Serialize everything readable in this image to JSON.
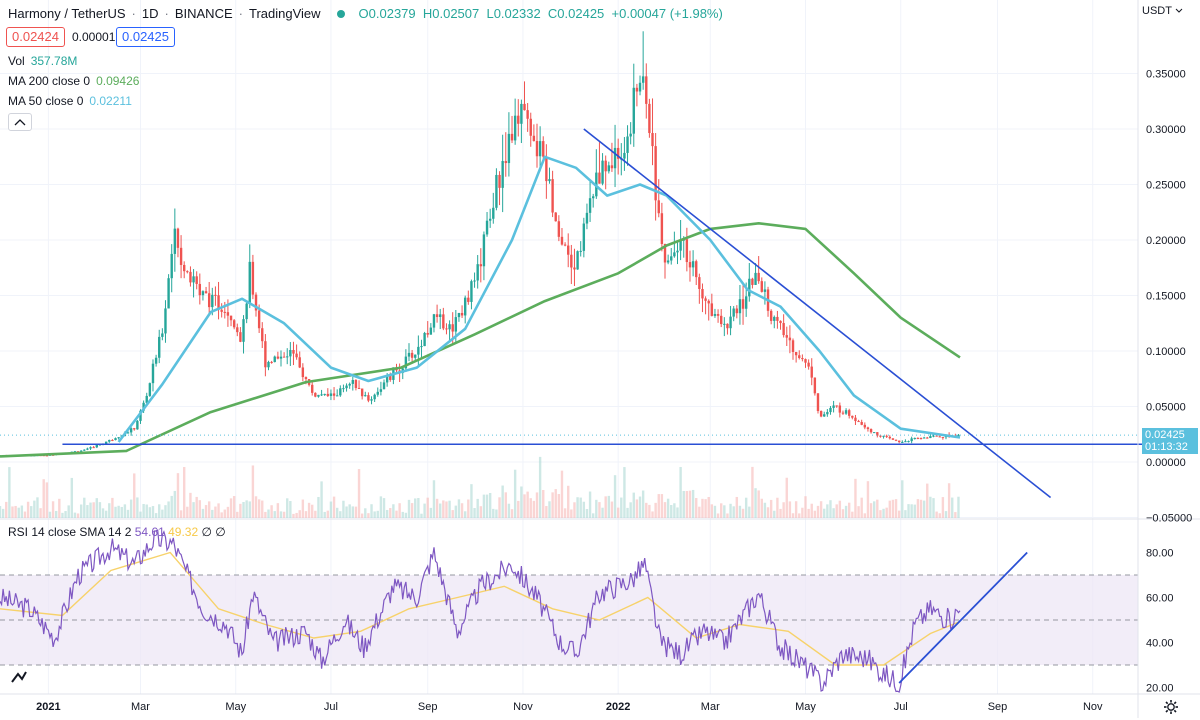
{
  "header": {
    "symbol": "Harmony / TetherUS",
    "interval": "1D",
    "exchange": "BINANCE",
    "platform": "TradingView",
    "ohlc": "O0.02379  H0.02507  L0.02332  C0.02425  +0.00047 (+1.98%)",
    "bid": "0.02424",
    "spread": "0.00001",
    "ask": "0.02425"
  },
  "indicators": {
    "vol_label": "Vol",
    "vol_value": "357.78M",
    "ma200_label": "MA 200 close 0",
    "ma200_value": "0.09426",
    "ma50_label": "MA 50 close 0",
    "ma50_value": "0.02211",
    "collapse_icon": "chevron-up-icon"
  },
  "rsi": {
    "label": "RSI 14 close SMA 14 2",
    "value": "54.61",
    "sma_value": "49.32",
    "extra": "∅ ∅"
  },
  "axis": {
    "currency": "USDT",
    "currency_icon": "chevron-down-icon",
    "last_price": "0.02425",
    "countdown": "01:13:32",
    "settings_icon": "gear-icon",
    "logo_icon": "tradingview-logo-icon"
  },
  "colors": {
    "up": "#26a69a",
    "down": "#ef5350",
    "ma200": "#5cad5c",
    "ma50": "#5bc0de",
    "trendline": "#2a4fd4",
    "rsi": "#7e57c2",
    "rsi_sma": "#f7d26a",
    "rsi_band": "#ede7f6"
  },
  "chart_data": [
    {
      "type": "candlestick",
      "title": "Harmony / TetherUS",
      "ylim": [
        -0.05,
        0.4
      ],
      "yticks": [
        "0.35000",
        "0.30000",
        "0.25000",
        "0.20000",
        "0.15000",
        "0.10000",
        "0.05000",
        "0.00000",
        "−0.05000"
      ],
      "ytick_values": [
        0.35,
        0.3,
        0.25,
        0.2,
        0.15,
        0.1,
        0.05,
        0.0,
        -0.05
      ],
      "xticks": [
        "2021",
        "Mar",
        "May",
        "Jul",
        "Sep",
        "Nov",
        "2022",
        "Mar",
        "May",
        "Jul",
        "Sep",
        "Nov"
      ],
      "x_start": "2020-12-01",
      "x_end": "2022-11-30",
      "price_path": [
        [
          "2020-12-01",
          0.006
        ],
        [
          "2021-01-01",
          0.006
        ],
        [
          "2021-01-25",
          0.011
        ],
        [
          "2021-02-10",
          0.02
        ],
        [
          "2021-02-25",
          0.03
        ],
        [
          "2021-03-05",
          0.06
        ],
        [
          "2021-03-15",
          0.12
        ],
        [
          "2021-03-22",
          0.2
        ],
        [
          "2021-04-01",
          0.17
        ],
        [
          "2021-04-10",
          0.15
        ],
        [
          "2021-04-25",
          0.14
        ],
        [
          "2021-05-05",
          0.11
        ],
        [
          "2021-05-10",
          0.17
        ],
        [
          "2021-05-20",
          0.09
        ],
        [
          "2021-06-05",
          0.1
        ],
        [
          "2021-06-20",
          0.06
        ],
        [
          "2021-07-01",
          0.06
        ],
        [
          "2021-07-15",
          0.07
        ],
        [
          "2021-07-25",
          0.055
        ],
        [
          "2021-08-10",
          0.08
        ],
        [
          "2021-08-25",
          0.1
        ],
        [
          "2021-09-05",
          0.13
        ],
        [
          "2021-09-15",
          0.12
        ],
        [
          "2021-10-01",
          0.16
        ],
        [
          "2021-10-12",
          0.23
        ],
        [
          "2021-10-25",
          0.3
        ],
        [
          "2021-10-30",
          0.33
        ],
        [
          "2021-11-05",
          0.29
        ],
        [
          "2021-11-15",
          0.27
        ],
        [
          "2021-11-25",
          0.2
        ],
        [
          "2021-12-05",
          0.18
        ],
        [
          "2021-12-15",
          0.24
        ],
        [
          "2021-12-25",
          0.27
        ],
        [
          "2022-01-05",
          0.28
        ],
        [
          "2022-01-12",
          0.33
        ],
        [
          "2022-01-17",
          0.35
        ],
        [
          "2022-01-22",
          0.29
        ],
        [
          "2022-01-30",
          0.18
        ],
        [
          "2022-02-10",
          0.2
        ],
        [
          "2022-02-20",
          0.17
        ],
        [
          "2022-03-01",
          0.14
        ],
        [
          "2022-03-10",
          0.12
        ],
        [
          "2022-03-20",
          0.14
        ],
        [
          "2022-03-30",
          0.17
        ],
        [
          "2022-04-10",
          0.13
        ],
        [
          "2022-04-25",
          0.1
        ],
        [
          "2022-05-05",
          0.08
        ],
        [
          "2022-05-10",
          0.04
        ],
        [
          "2022-05-20",
          0.05
        ],
        [
          "2022-06-01",
          0.04
        ],
        [
          "2022-06-15",
          0.025
        ],
        [
          "2022-06-30",
          0.018
        ],
        [
          "2022-07-15",
          0.022
        ],
        [
          "2022-08-01",
          0.024
        ],
        [
          "2022-08-08",
          0.02425
        ]
      ],
      "ma200_path": [
        [
          "2020-12-01",
          0.005
        ],
        [
          "2021-02-20",
          0.01
        ],
        [
          "2021-04-15",
          0.045
        ],
        [
          "2021-06-15",
          0.072
        ],
        [
          "2021-08-15",
          0.085
        ],
        [
          "2021-10-01",
          0.115
        ],
        [
          "2021-11-15",
          0.145
        ],
        [
          "2022-01-01",
          0.17
        ],
        [
          "2022-02-01",
          0.195
        ],
        [
          "2022-03-01",
          0.21
        ],
        [
          "2022-04-01",
          0.215
        ],
        [
          "2022-05-01",
          0.21
        ],
        [
          "2022-06-01",
          0.17
        ],
        [
          "2022-07-01",
          0.13
        ],
        [
          "2022-08-08",
          0.09426
        ]
      ],
      "ma50_path": [
        [
          "2021-02-15",
          0.018
        ],
        [
          "2021-03-15",
          0.07
        ],
        [
          "2021-04-15",
          0.135
        ],
        [
          "2021-05-05",
          0.147
        ],
        [
          "2021-06-01",
          0.125
        ],
        [
          "2021-07-01",
          0.085
        ],
        [
          "2021-07-25",
          0.073
        ],
        [
          "2021-08-25",
          0.085
        ],
        [
          "2021-09-25",
          0.12
        ],
        [
          "2021-10-25",
          0.2
        ],
        [
          "2021-11-15",
          0.275
        ],
        [
          "2021-12-05",
          0.265
        ],
        [
          "2021-12-25",
          0.24
        ],
        [
          "2022-01-15",
          0.25
        ],
        [
          "2022-02-01",
          0.24
        ],
        [
          "2022-03-01",
          0.2
        ],
        [
          "2022-03-25",
          0.155
        ],
        [
          "2022-04-15",
          0.14
        ],
        [
          "2022-05-10",
          0.1
        ],
        [
          "2022-06-01",
          0.06
        ],
        [
          "2022-07-01",
          0.03
        ],
        [
          "2022-08-08",
          0.02211
        ]
      ],
      "trendline_down": [
        [
          "2021-12-10",
          0.3
        ],
        [
          "2022-10-05",
          -0.032
        ]
      ],
      "trendline_flat": [
        [
          "2021-01-10",
          0.016
        ],
        [
          "2022-11-30",
          0.016
        ]
      ]
    },
    {
      "type": "line",
      "title": "RSI 14 close SMA 14 2",
      "ylim": [
        15,
        90
      ],
      "yticks": [
        "80.00",
        "60.00",
        "40.00",
        "20.00"
      ],
      "ytick_values": [
        80,
        60,
        40,
        20
      ],
      "band": [
        30,
        70
      ],
      "midline": 50,
      "rsi_path": [
        [
          "2020-12-01",
          60
        ],
        [
          "2020-12-20",
          55
        ],
        [
          "2021-01-05",
          42
        ],
        [
          "2021-01-20",
          70
        ],
        [
          "2021-02-10",
          82
        ],
        [
          "2021-02-25",
          75
        ],
        [
          "2021-03-10",
          86
        ],
        [
          "2021-03-22",
          84
        ],
        [
          "2021-04-10",
          55
        ],
        [
          "2021-04-25",
          48
        ],
        [
          "2021-05-05",
          35
        ],
        [
          "2021-05-12",
          62
        ],
        [
          "2021-05-25",
          40
        ],
        [
          "2021-06-15",
          45
        ],
        [
          "2021-06-25",
          32
        ],
        [
          "2021-07-10",
          50
        ],
        [
          "2021-07-22",
          38
        ],
        [
          "2021-08-10",
          65
        ],
        [
          "2021-08-25",
          60
        ],
        [
          "2021-09-05",
          80
        ],
        [
          "2021-09-20",
          45
        ],
        [
          "2021-10-05",
          65
        ],
        [
          "2021-10-25",
          75
        ],
        [
          "2021-11-10",
          60
        ],
        [
          "2021-11-25",
          40
        ],
        [
          "2021-12-05",
          35
        ],
        [
          "2021-12-20",
          62
        ],
        [
          "2022-01-10",
          68
        ],
        [
          "2022-01-18",
          75
        ],
        [
          "2022-01-28",
          40
        ],
        [
          "2022-02-10",
          35
        ],
        [
          "2022-02-25",
          45
        ],
        [
          "2022-03-10",
          40
        ],
        [
          "2022-03-25",
          55
        ],
        [
          "2022-04-01",
          62
        ],
        [
          "2022-04-15",
          38
        ],
        [
          "2022-04-30",
          30
        ],
        [
          "2022-05-12",
          22
        ],
        [
          "2022-05-25",
          35
        ],
        [
          "2022-06-10",
          33
        ],
        [
          "2022-06-20",
          26
        ],
        [
          "2022-06-30",
          22
        ],
        [
          "2022-07-10",
          48
        ],
        [
          "2022-07-20",
          55
        ],
        [
          "2022-08-01",
          50
        ],
        [
          "2022-08-08",
          54.61
        ]
      ],
      "rsi_sma_path": [
        [
          "2020-12-01",
          55
        ],
        [
          "2021-01-10",
          52
        ],
        [
          "2021-02-10",
          72
        ],
        [
          "2021-03-20",
          80
        ],
        [
          "2021-04-20",
          55
        ],
        [
          "2021-05-20",
          48
        ],
        [
          "2021-06-20",
          42
        ],
        [
          "2021-07-20",
          45
        ],
        [
          "2021-08-20",
          55
        ],
        [
          "2021-09-20",
          60
        ],
        [
          "2021-10-20",
          65
        ],
        [
          "2021-11-20",
          55
        ],
        [
          "2021-12-20",
          50
        ],
        [
          "2022-01-20",
          60
        ],
        [
          "2022-02-20",
          42
        ],
        [
          "2022-03-20",
          48
        ],
        [
          "2022-04-20",
          45
        ],
        [
          "2022-05-20",
          30
        ],
        [
          "2022-06-20",
          30
        ],
        [
          "2022-07-20",
          44
        ],
        [
          "2022-08-08",
          49.32
        ]
      ],
      "trendline_up": [
        [
          "2022-06-30",
          22
        ],
        [
          "2022-09-20",
          80
        ]
      ]
    }
  ]
}
